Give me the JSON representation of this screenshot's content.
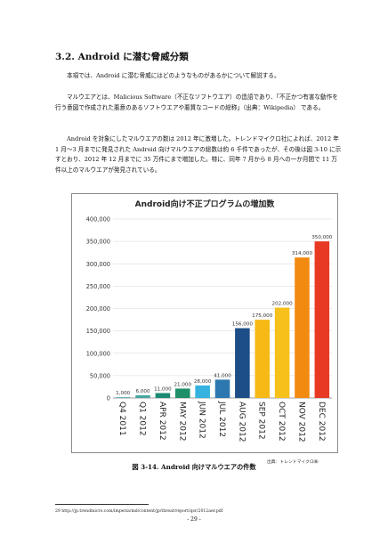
{
  "section": {
    "heading": "3.2.  Android に潜む脅威分類"
  },
  "paragraphs": [
    "本項では、Android に潜む脅威にはどのようなものがあるかについて解説する。",
    "マルウエアとは、Malicious Software（不正なソフトウエア）の造語であり、「不正かつ有害な動作を行う意図で作成された悪意のあるソフトウエアや悪質なコードの総称」（出典：Wikipedia） である。",
    "Android を対象にしたマルウエアの数は 2012 年に激増した。トレンドマイクロ社によれば、2012 年 1 月～3 月までに発見された Android 向けマルウエアの総数は約 6 千件であったが、その後は図 3-10 に示すとおり、2012 年 12 月までに 35 万件にまで増加した。特に、同年 7 月から 8 月への一か月間で 11 万件以上のマルウエアが発見されている。"
  ],
  "chart_data": {
    "type": "bar",
    "title": "Android向け不正プログラムの増加数",
    "categories": [
      "Q4 2011",
      "Q1 2012",
      "APR 2012",
      "MAY 2012",
      "JUN 2012",
      "JUL 2012",
      "AUG 2012",
      "SEP 2012",
      "OCT 2012",
      "NOV 2012",
      "DEC 2012"
    ],
    "values": [
      1000,
      6000,
      11000,
      21000,
      28000,
      41000,
      156000,
      175000,
      202000,
      314000,
      350000
    ],
    "value_labels": [
      "1,000",
      "6,000",
      "11,000",
      "21,000",
      "28,000",
      "41,000",
      "156,000",
      "175,000",
      "202,000",
      "314,000",
      "350,000"
    ],
    "colors": [
      "#3ea3a8",
      "#46a6a0",
      "#1d8a72",
      "#1e8f69",
      "#35b2df",
      "#2e78b0",
      "#1d4e87",
      "#f7b916",
      "#f7c11c",
      "#f28a12",
      "#e83a22"
    ],
    "yticks": [
      0,
      50000,
      100000,
      150000,
      200000,
      250000,
      300000,
      350000,
      400000
    ],
    "ytick_labels": [
      "0",
      "50,000",
      "100,000",
      "150,000",
      "200,000",
      "250,000",
      "300,000",
      "350,000",
      "400,000"
    ],
    "ylim": [
      0,
      400000
    ],
    "grid": true
  },
  "source": "出典：トレンドマイクロ㈱",
  "caption": "図 3-14.  Android 向けマルウエアの件数",
  "footnote": "29  http://jp.trendmicro.com/imperia/md/content/jp/threat/report/qsr/2012aer.pdf",
  "page_number": "- 29 -"
}
